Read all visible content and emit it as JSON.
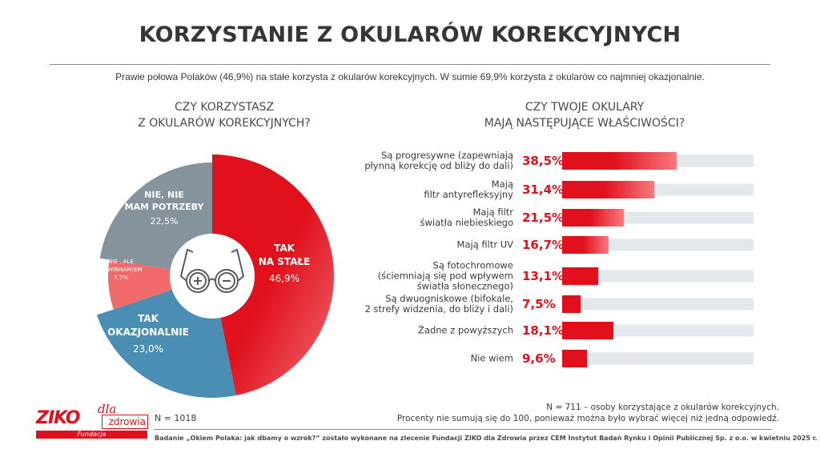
{
  "title": "KORZYSTANIE Z OKULARÓW KOREKCYJNYCH",
  "subtitle": "Prawie połowa Polaków (46,9%) na stałe korzysta z okularów korekcyjnych. W sumie 69,9% korzysta z okularów co najmniej okazjonalnie.",
  "colors": {
    "accent": "#e0101c",
    "grey": "#84939c",
    "blue": "#4a8fb3",
    "salmon": "#f26b6b",
    "track": "#e2e8ec"
  },
  "chart_data": [
    {
      "type": "pie",
      "title_lines": [
        "CZY KORZYSTASZ",
        "Z OKULARÓW KOREKCYJNYCH?"
      ],
      "center_icon": "glasses-icon",
      "slices": [
        {
          "label_lines": [
            "TAK",
            "NA STAŁE"
          ],
          "value": 46.9,
          "value_label": "46,9%",
          "color": "#e0101c"
        },
        {
          "label_lines": [
            "TAK",
            "OKAZJONALNIE"
          ],
          "value": 23.0,
          "value_label": "23,0%",
          "color": "#4a8fb3"
        },
        {
          "label_lines": [
            "NIE , ALE",
            "POWINNAM/EM"
          ],
          "value": 7.7,
          "value_label": "7,7%",
          "color": "#f26b6b"
        },
        {
          "label_lines": [
            "NIE, NIE",
            "MAM POTRZEBY"
          ],
          "value": 22.5,
          "value_label": "22,5%",
          "color": "#84939c"
        }
      ],
      "n_label": "N = 1018"
    },
    {
      "type": "bar",
      "orientation": "horizontal",
      "title_lines": [
        "CZY TWOJE OKULARY",
        "MAJĄ NASTĘPUJĄCE WŁAŚCIWOŚCI?"
      ],
      "categories": [
        [
          "Są progresywne (zapewniają",
          "płynną korekcję od bliży do dali)"
        ],
        [
          "Mają",
          "filtr antyrefleksyjny"
        ],
        [
          "Mają filtr",
          "światła niebieskiego"
        ],
        [
          "Mają filtr UV"
        ],
        [
          "Są fotochromowe",
          "(ściemniają się pod wpływem",
          "światła słonecznego)"
        ],
        [
          "Są dwuogniskowe (bifokale,",
          "2 strefy widzenia, do bliży i dali)"
        ],
        [
          "Żadne z powyższych"
        ],
        [
          "Nie wiem"
        ]
      ],
      "values": [
        38.5,
        31.4,
        21.5,
        16.7,
        13.1,
        7.5,
        18.1,
        9.6
      ],
      "value_labels": [
        "38,5%",
        "31,4%",
        "21,5%",
        "16,7%",
        "13,1%",
        "7,5%",
        "18,1%",
        "9,6%"
      ],
      "xlim": [
        0,
        65
      ],
      "notes": [
        "N = 711 – osoby korzystające z okularów korekcyjnych.",
        "Procenty nie sumują się do 100, ponieważ można było wybrać więcej niż jedną odpowiedź."
      ]
    }
  ],
  "logo": {
    "name": "ZIKO",
    "dla": "dla",
    "zdrowia": "zdrowia",
    "fundacja": "Fundacja"
  },
  "footer": "Badanie „Okiem Polaka: jak dbamy o wzrok?” zostało wykonane na zlecenie Fundacji ZIKO dla Zdrowia przez CEM Instytut Badań Rynku i Opinii Publicznej Sp. z o.o. w kwietniu 2025 r."
}
